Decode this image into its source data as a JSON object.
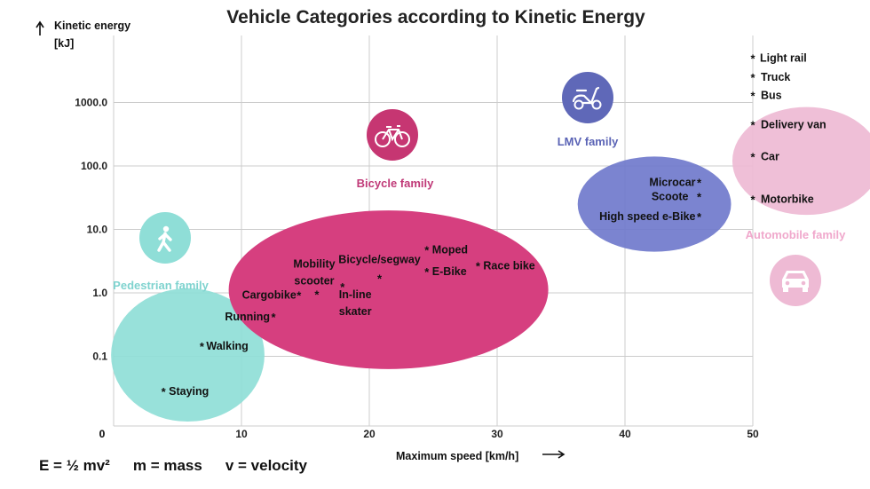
{
  "chart_data": {
    "type": "scatter",
    "title": "Vehicle Categories according to Kinetic Energy",
    "xlabel": "Maximum speed [km/h]",
    "ylabel": "Kinetic energy",
    "ylabel_unit": "[kJ]",
    "x_ticks": [
      "0",
      "10",
      "20",
      "30",
      "40",
      "50"
    ],
    "xlim": [
      0,
      50
    ],
    "y_scale": "log",
    "y_ticks": [
      "0.1",
      "1.0",
      "10.0",
      "100.0",
      "1000.0"
    ],
    "y_zero_label": "0",
    "ylim": [
      0.015,
      10000
    ],
    "grid": true,
    "families": [
      {
        "name": "Pedestrian family",
        "color": "#8fded7",
        "label_color": "#7fd3cf",
        "icon": "pedestrian-icon",
        "center": [
          5.8,
          0.105
        ],
        "radius_x": 6.0,
        "radius_y_decades": [
          1.05,
          1.05
        ]
      },
      {
        "name": "Bicycle family",
        "color": "#d63f7f",
        "label_color": "#c03a78",
        "icon": "bicycle-icon",
        "center": [
          21.5,
          1.12
        ],
        "radius_x": 12.5,
        "radius_y_decades": [
          1.25,
          1.25
        ]
      },
      {
        "name": "LMV family",
        "color": "#7079cc",
        "label_color": "#5a63b5",
        "icon": "scooter-icon",
        "center": [
          42.3,
          25.0
        ],
        "radius_x": 6.0,
        "radius_y_decades": [
          0.75,
          0.75
        ]
      },
      {
        "name": "Automobile family",
        "color": "#eebad4",
        "label_color": "#f0a8cc",
        "icon": "car-icon",
        "center": [
          54.2,
          120.0
        ],
        "radius_x": 5.8,
        "radius_y_decades": [
          0.85,
          0.85
        ]
      }
    ],
    "points": [
      {
        "label": "Staying",
        "x": 3.9,
        "y": 0.028
      },
      {
        "label": "Walking",
        "x": 6.9,
        "y": 0.145
      },
      {
        "label": "Running",
        "x": 12.5,
        "y": 0.42
      },
      {
        "label": "Cargobike",
        "x": 14.5,
        "y": 0.93
      },
      {
        "label": "Mobility\nscooter",
        "x": 15.9,
        "y": 0.95
      },
      {
        "label": "In-line\nskater",
        "x": 17.9,
        "y": 1.25
      },
      {
        "label": "Bicycle/segway",
        "x": 20.8,
        "y": 1.7
      },
      {
        "label": "Moped",
        "x": 24.5,
        "y": 4.8
      },
      {
        "label": "E-Bike",
        "x": 24.5,
        "y": 2.15
      },
      {
        "label": "Race bike",
        "x": 28.5,
        "y": 2.65
      },
      {
        "label": "Microcar",
        "x": 45.8,
        "y": 55.0
      },
      {
        "label": "Scoote",
        "x": 45.8,
        "y": 33.0
      },
      {
        "label": "High speed e-Bike",
        "x": 45.8,
        "y": 16.0
      },
      {
        "label": "Light rail",
        "x": 50.0,
        "y": 5000.0
      },
      {
        "label": "Truck",
        "x": 50.0,
        "y": 2500.0
      },
      {
        "label": "Bus",
        "x": 50.0,
        "y": 1300.0
      },
      {
        "label": "Delivery van",
        "x": 50.0,
        "y": 450.0
      },
      {
        "label": "Car",
        "x": 50.0,
        "y": 140.0
      },
      {
        "label": "Motorbike",
        "x": 50.0,
        "y": 30.0
      }
    ]
  },
  "formula": {
    "energy": "E = ½ mv²",
    "mass": "m = mass",
    "velocity": "v = velocity"
  }
}
